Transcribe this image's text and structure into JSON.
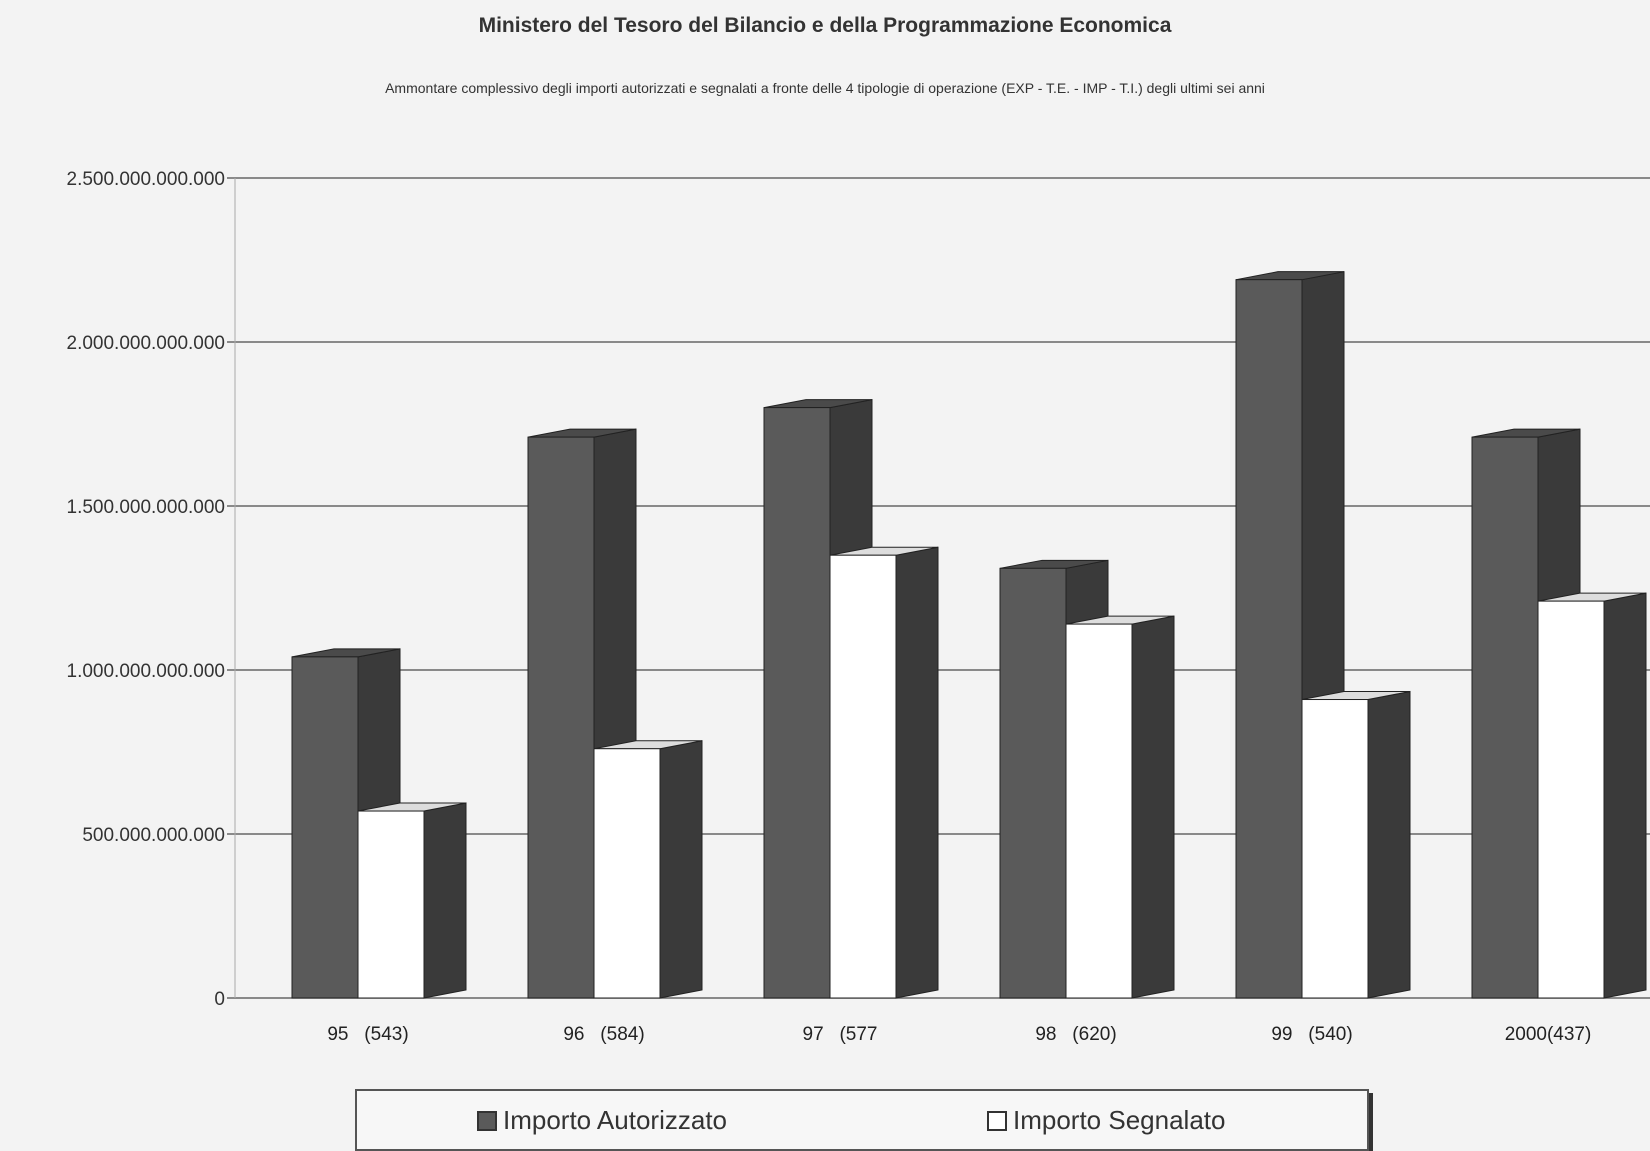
{
  "colors": {
    "autorizzato": "#5a5a5a",
    "autorizzato_side": "#3a3a3a",
    "segnalato": "#ffffff",
    "gridline": "#666666",
    "background": "#f3f3f3"
  },
  "chart_data": {
    "type": "bar",
    "title": "Ministero del Tesoro del Bilancio e della Programmazione Economica",
    "subtitle": "Ammontare complessivo degli importi autorizzati e segnalati a fronte delle 4 tipologie di operazione (EXP - T.E. - IMP - T.I.) degli ultimi sei anni",
    "xlabel": "",
    "ylabel": "",
    "categories": [
      "95   (543)",
      "96   (584)",
      "97   (577",
      "98   (620)",
      "99   (540)",
      "2000(437)"
    ],
    "series": [
      {
        "name": "Importo Autorizzato",
        "values": [
          1040000000000,
          1710000000000,
          1800000000000,
          1310000000000,
          2190000000000,
          1710000000000
        ]
      },
      {
        "name": "Importo Segnalato",
        "values": [
          570000000000,
          760000000000,
          1350000000000,
          1140000000000,
          910000000000,
          1210000000000
        ]
      }
    ],
    "ylim": [
      0,
      2500000000000
    ],
    "yticks": [
      0,
      500000000000,
      1000000000000,
      1500000000000,
      2000000000000,
      2500000000000
    ],
    "ytick_labels": [
      "0",
      "500.000.000.000",
      "1.000.000.000.000",
      "1.500.000.000.000",
      "2.000.000.000.000",
      "2.500.000.000.000"
    ],
    "grid": true,
    "legend_position": "bottom"
  }
}
